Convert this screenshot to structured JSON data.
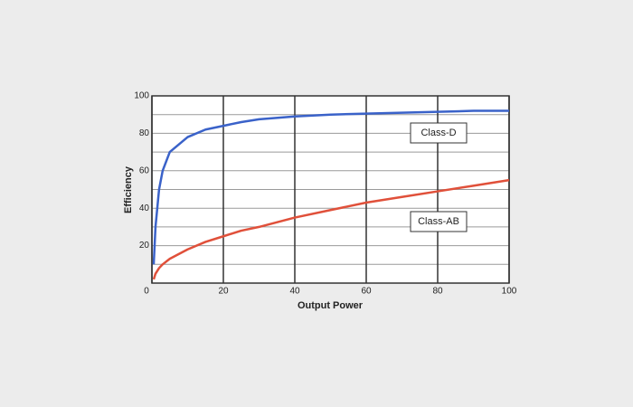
{
  "chart_data": {
    "type": "line",
    "x_label": "Output Power",
    "y_label": "Efficiency",
    "x": [
      0.5,
      1,
      2,
      3,
      5,
      10,
      15,
      20,
      25,
      30,
      40,
      50,
      60,
      70,
      80,
      90,
      100
    ],
    "series": [
      {
        "name": "Class-D",
        "color": "#3a62c9",
        "values": [
          10,
          30,
          50,
          60,
          70,
          78,
          82,
          84,
          86,
          87.5,
          89,
          90,
          90.5,
          91,
          91.5,
          92,
          92
        ]
      },
      {
        "name": "Class-AB",
        "color": "#e0503a",
        "values": [
          2,
          5,
          8,
          10,
          13,
          18,
          22,
          25,
          28,
          30,
          35,
          39,
          43,
          46,
          49,
          52,
          55
        ]
      }
    ],
    "xlim": [
      0,
      100
    ],
    "xticks": [
      0,
      20,
      40,
      60,
      80,
      100
    ],
    "ylim": [
      0,
      100
    ],
    "yticks": [
      20,
      40,
      60,
      80,
      100
    ],
    "minor_yticks": [
      10,
      30,
      50,
      70,
      90
    ],
    "grid": true
  }
}
